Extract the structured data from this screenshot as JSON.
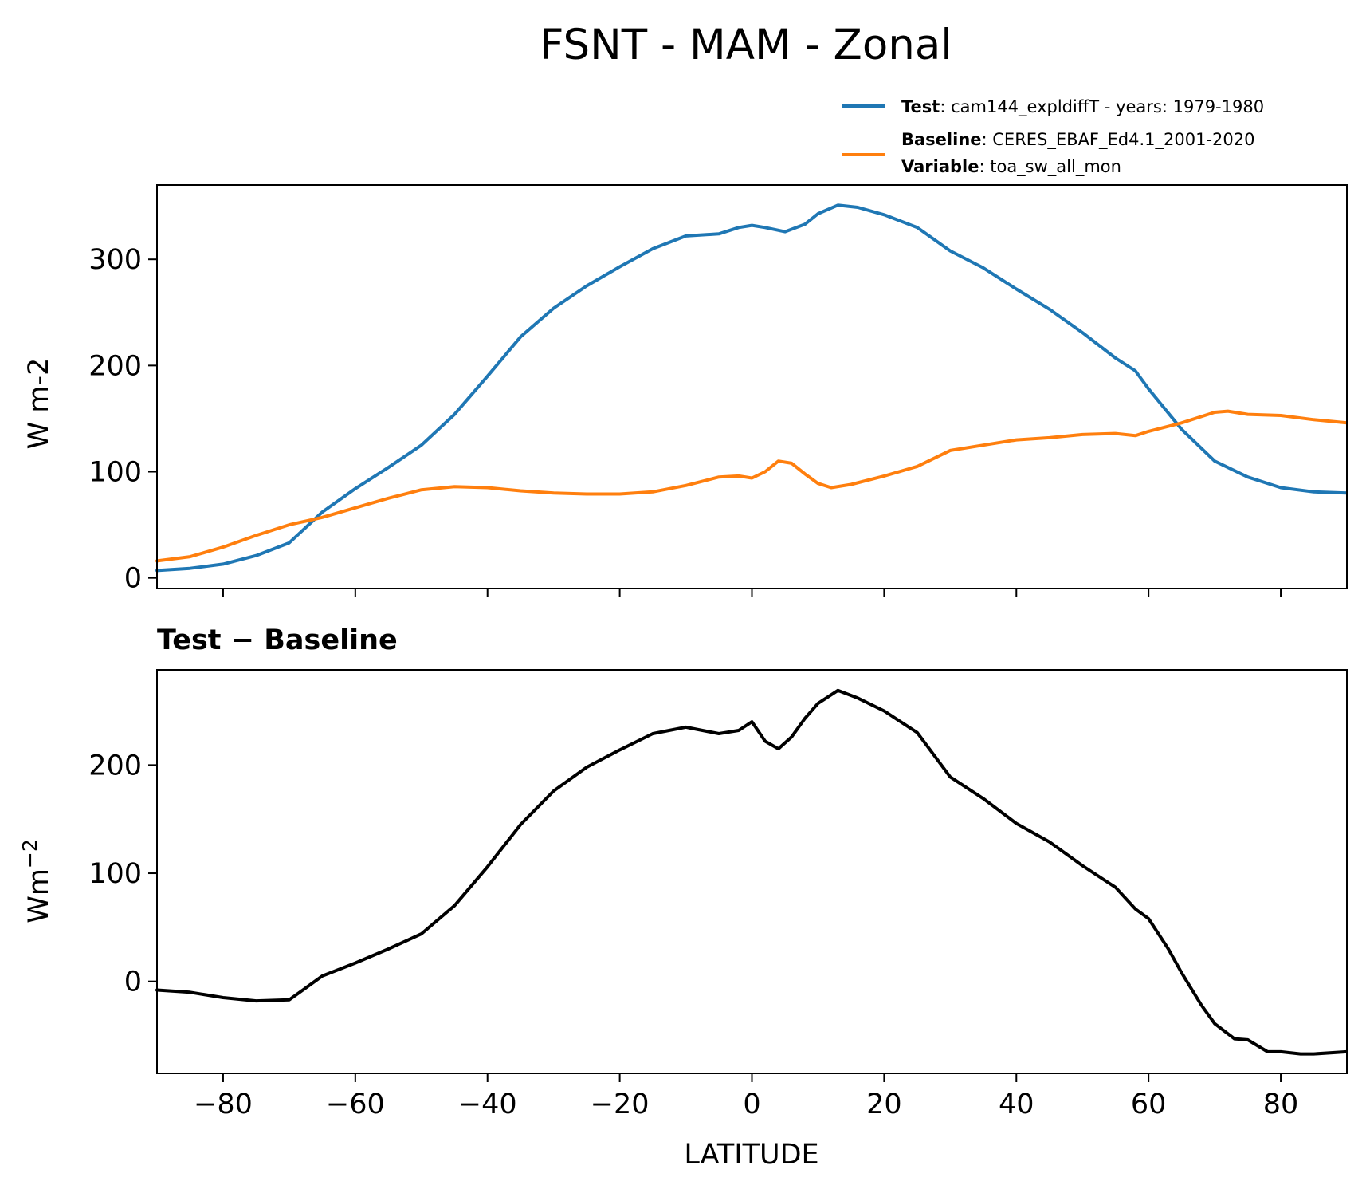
{
  "title": "FSNT - MAM - Zonal",
  "legend": {
    "test_bold": "Test",
    "test_text": ": cam144_expldiffT - years: 1979-1980",
    "baseline_bold": "Baseline",
    "baseline_text": ": CERES_EBAF_Ed4.1_2001-2020",
    "variable_bold": "Variable",
    "variable_text": ": toa_sw_all_mon"
  },
  "colors": {
    "test": "#1f77b4",
    "baseline": "#ff7f0e",
    "diff": "#000000"
  },
  "chart_data": [
    {
      "type": "line",
      "ylabel": "W m-2",
      "xlim": [
        -90,
        90
      ],
      "ylim": [
        -10,
        370
      ],
      "yticks": [
        0,
        100,
        200,
        300
      ],
      "xticks": [
        -80,
        -60,
        -40,
        -20,
        0,
        20,
        40,
        60,
        80
      ],
      "series": [
        {
          "name": "Test",
          "x": [
            -90,
            -85,
            -80,
            -75,
            -70,
            -65,
            -60,
            -55,
            -50,
            -45,
            -40,
            -35,
            -30,
            -25,
            -20,
            -15,
            -10,
            -5,
            -2,
            0,
            2,
            5,
            8,
            10,
            13,
            16,
            20,
            25,
            30,
            35,
            40,
            45,
            50,
            55,
            58,
            60,
            65,
            70,
            75,
            80,
            85,
            90
          ],
          "y": [
            7,
            9,
            13,
            21,
            33,
            62,
            84,
            104,
            125,
            154,
            190,
            227,
            254,
            275,
            293,
            310,
            322,
            324,
            330,
            332,
            330,
            326,
            333,
            343,
            351,
            349,
            342,
            330,
            308,
            292,
            272,
            253,
            231,
            207,
            195,
            178,
            140,
            110,
            95,
            85,
            81,
            80
          ]
        },
        {
          "name": "Baseline",
          "x": [
            -90,
            -85,
            -80,
            -75,
            -70,
            -65,
            -60,
            -55,
            -50,
            -45,
            -40,
            -35,
            -30,
            -25,
            -20,
            -15,
            -10,
            -5,
            -2,
            0,
            2,
            4,
            6,
            8,
            10,
            12,
            15,
            20,
            25,
            30,
            35,
            40,
            45,
            50,
            55,
            58,
            60,
            65,
            70,
            72,
            75,
            80,
            85,
            90
          ],
          "y": [
            16,
            20,
            29,
            40,
            50,
            57,
            66,
            75,
            83,
            86,
            85,
            82,
            80,
            79,
            79,
            81,
            87,
            95,
            96,
            94,
            100,
            110,
            108,
            98,
            89,
            85,
            88,
            96,
            105,
            120,
            125,
            130,
            132,
            135,
            136,
            134,
            138,
            146,
            156,
            157,
            154,
            153,
            149,
            146
          ]
        }
      ]
    },
    {
      "type": "line",
      "subtitle": "Test − Baseline",
      "ylabel": "Wm",
      "ylabel_sup": "−2",
      "xlabel": "LATITUDE",
      "xlim": [
        -90,
        90
      ],
      "ylim": [
        -85,
        288
      ],
      "yticks": [
        0,
        100,
        200
      ],
      "xticks": [
        -80,
        -60,
        -40,
        -20,
        0,
        20,
        40,
        60,
        80
      ],
      "xticklabels": [
        "−80",
        "−60",
        "−40",
        "−20",
        "0",
        "20",
        "40",
        "60",
        "80"
      ],
      "series": [
        {
          "name": "Test − Baseline",
          "x": [
            -90,
            -85,
            -80,
            -75,
            -70,
            -65,
            -60,
            -55,
            -50,
            -45,
            -40,
            -35,
            -30,
            -25,
            -20,
            -15,
            -10,
            -5,
            -2,
            0,
            2,
            4,
            6,
            8,
            10,
            13,
            16,
            20,
            25,
            30,
            35,
            40,
            45,
            50,
            55,
            58,
            60,
            63,
            65,
            68,
            70,
            73,
            75,
            78,
            80,
            83,
            85,
            90
          ],
          "y": [
            -8,
            -10,
            -15,
            -18,
            -17,
            5,
            17,
            30,
            44,
            70,
            106,
            145,
            176,
            198,
            214,
            229,
            235,
            229,
            232,
            240,
            222,
            215,
            226,
            243,
            257,
            269,
            262,
            250,
            230,
            189,
            169,
            146,
            129,
            107,
            87,
            67,
            58,
            30,
            8,
            -22,
            -39,
            -53,
            -54,
            -65,
            -65,
            -67,
            -67,
            -65
          ]
        }
      ]
    }
  ]
}
